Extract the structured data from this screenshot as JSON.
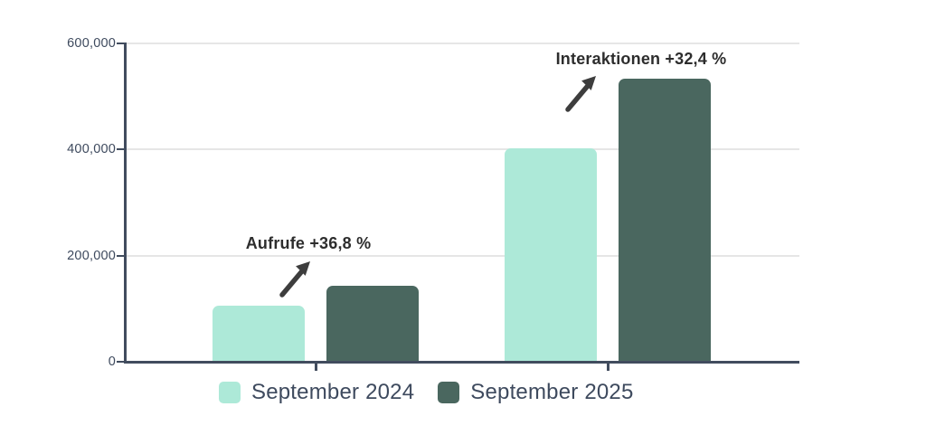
{
  "chart_data": {
    "type": "bar",
    "title": "",
    "categories": [
      "Aufrufe",
      "Interaktionen"
    ],
    "series": [
      {
        "name": "September 2024",
        "color": "#ade9d8",
        "values": [
          105000,
          403000
        ]
      },
      {
        "name": "September 2025",
        "color": "#4a675f",
        "values": [
          143600,
          533500
        ]
      }
    ],
    "annotations": [
      {
        "text": "Aufrufe +36,8 %",
        "target": "Aufrufe"
      },
      {
        "text": "Interaktionen +32,4 %",
        "target": "Interaktionen"
      }
    ],
    "ylim": [
      0,
      600000
    ],
    "y_ticks": [
      {
        "value": 0,
        "label": "0"
      },
      {
        "value": 200000,
        "label": "200,000"
      },
      {
        "value": 400000,
        "label": "400,000"
      },
      {
        "value": 600000,
        "label": "600,000"
      }
    ],
    "grid": true,
    "legend_position": "bottom",
    "colors": {
      "axis": "#414c5e",
      "grid": "#e6e6e6",
      "text": "#3e4a5e",
      "annotation": "#2d2d2d",
      "arrow": "#3d3d3d",
      "background": "#ffffff"
    }
  }
}
